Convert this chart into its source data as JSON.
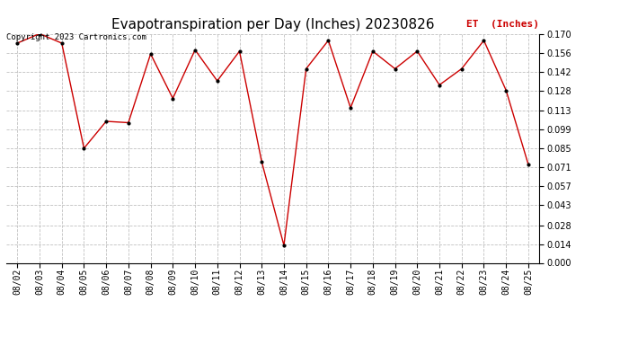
{
  "title": "Evapotranspiration per Day (Inches) 20230826",
  "legend_label": "ET  (Inches)",
  "copyright_text": "Copyright 2023 Cartronics.com",
  "dates": [
    "08/02",
    "08/03",
    "08/04",
    "08/05",
    "08/06",
    "08/07",
    "08/08",
    "08/09",
    "08/10",
    "08/11",
    "08/12",
    "08/13",
    "08/14",
    "08/15",
    "08/16",
    "08/17",
    "08/18",
    "08/19",
    "08/20",
    "08/21",
    "08/22",
    "08/23",
    "08/24",
    "08/25"
  ],
  "values": [
    0.163,
    0.17,
    0.163,
    0.085,
    0.105,
    0.104,
    0.155,
    0.122,
    0.158,
    0.135,
    0.157,
    0.075,
    0.013,
    0.144,
    0.165,
    0.115,
    0.157,
    0.144,
    0.157,
    0.132,
    0.144,
    0.165,
    0.128,
    0.073
  ],
  "line_color": "#cc0000",
  "marker_color": "#000000",
  "background_color": "#ffffff",
  "grid_color": "#c0c0c0",
  "ylim": [
    0.0,
    0.17
  ],
  "yticks": [
    0.0,
    0.014,
    0.028,
    0.043,
    0.057,
    0.071,
    0.085,
    0.099,
    0.113,
    0.128,
    0.142,
    0.156,
    0.17
  ],
  "title_fontsize": 11,
  "legend_fontsize": 8,
  "tick_fontsize": 7,
  "copyright_fontsize": 6.5
}
